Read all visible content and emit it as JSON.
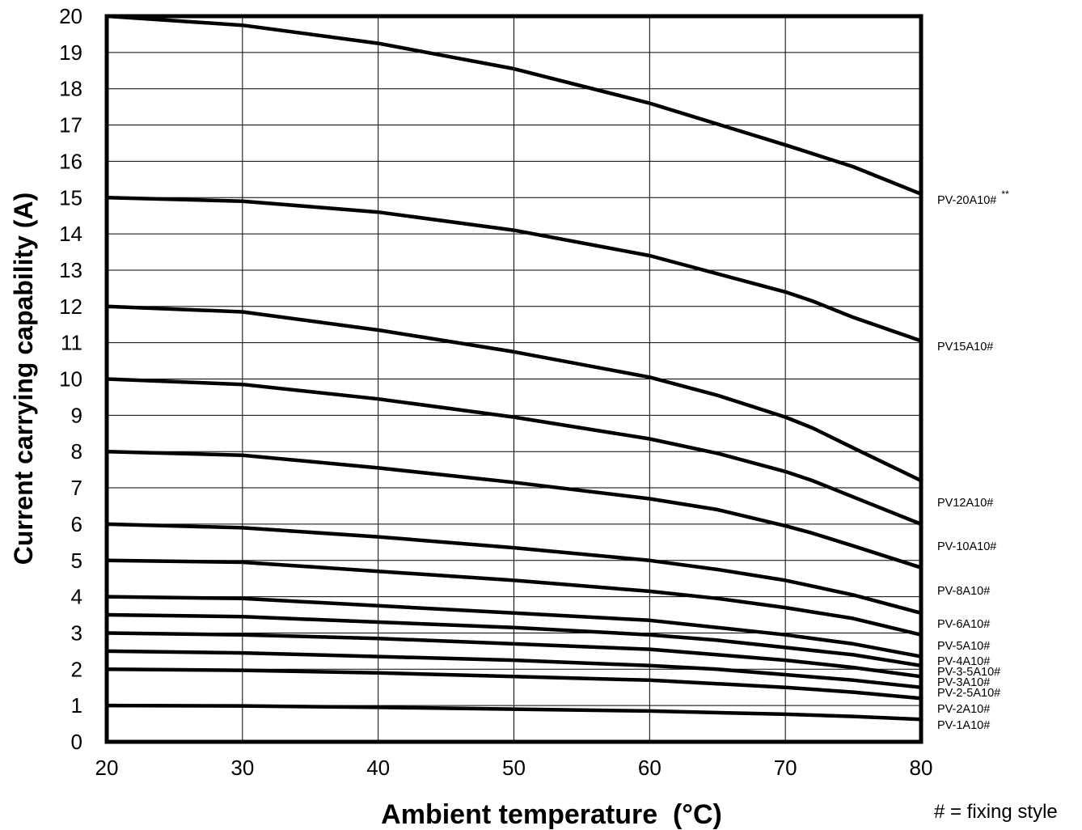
{
  "chart_data": {
    "type": "line",
    "title": "",
    "xlabel": "Ambient temperature  (°C)",
    "ylabel": "Current carrying capability (A)",
    "xlim": [
      20,
      80
    ],
    "ylim": [
      0,
      20
    ],
    "x_ticks": [
      20,
      30,
      40,
      50,
      60,
      70,
      80
    ],
    "y_ticks": [
      0,
      1,
      2,
      3,
      4,
      5,
      6,
      7,
      8,
      9,
      10,
      11,
      12,
      13,
      14,
      15,
      16,
      17,
      18,
      19,
      20
    ],
    "grid": true,
    "line_color": "#000000",
    "legend": "labels at right end of each line",
    "note": "# = fixing style",
    "series": [
      {
        "name": "PV-20A10#",
        "name_suffix": "**",
        "points": [
          [
            20,
            20
          ],
          [
            30,
            19.75
          ],
          [
            40,
            19.25
          ],
          [
            50,
            18.55
          ],
          [
            60,
            17.6
          ],
          [
            70,
            16.45
          ],
          [
            75,
            15.85
          ],
          [
            80,
            15.1
          ]
        ]
      },
      {
        "name": "PV15A10#",
        "points": [
          [
            20,
            15
          ],
          [
            30,
            14.9
          ],
          [
            40,
            14.6
          ],
          [
            50,
            14.1
          ],
          [
            60,
            13.4
          ],
          [
            70,
            12.4
          ],
          [
            72,
            12.15
          ],
          [
            75,
            11.7
          ],
          [
            80,
            11.05
          ]
        ]
      },
      {
        "name": "PV12A10#",
        "points": [
          [
            20,
            12
          ],
          [
            30,
            11.85
          ],
          [
            40,
            11.35
          ],
          [
            50,
            10.75
          ],
          [
            60,
            10.05
          ],
          [
            65,
            9.55
          ],
          [
            70,
            8.95
          ],
          [
            72,
            8.65
          ],
          [
            75,
            8.1
          ],
          [
            80,
            7.2
          ]
        ]
      },
      {
        "name": "PV-10A10#",
        "points": [
          [
            20,
            10
          ],
          [
            30,
            9.85
          ],
          [
            40,
            9.45
          ],
          [
            50,
            8.95
          ],
          [
            60,
            8.35
          ],
          [
            65,
            7.95
          ],
          [
            70,
            7.45
          ],
          [
            72,
            7.2
          ],
          [
            75,
            6.75
          ],
          [
            80,
            6
          ]
        ]
      },
      {
        "name": "PV-8A10#",
        "points": [
          [
            20,
            8
          ],
          [
            30,
            7.9
          ],
          [
            40,
            7.55
          ],
          [
            50,
            7.15
          ],
          [
            60,
            6.7
          ],
          [
            65,
            6.4
          ],
          [
            70,
            5.95
          ],
          [
            72,
            5.75
          ],
          [
            75,
            5.4
          ],
          [
            80,
            4.8
          ]
        ]
      },
      {
        "name": "PV-6A10#",
        "points": [
          [
            20,
            6
          ],
          [
            30,
            5.9
          ],
          [
            40,
            5.65
          ],
          [
            50,
            5.35
          ],
          [
            60,
            5.0
          ],
          [
            65,
            4.75
          ],
          [
            70,
            4.45
          ],
          [
            75,
            4.05
          ],
          [
            80,
            3.55
          ]
        ]
      },
      {
        "name": "PV-5A10#",
        "points": [
          [
            20,
            5
          ],
          [
            30,
            4.95
          ],
          [
            40,
            4.7
          ],
          [
            50,
            4.45
          ],
          [
            60,
            4.15
          ],
          [
            65,
            3.95
          ],
          [
            70,
            3.7
          ],
          [
            75,
            3.4
          ],
          [
            80,
            2.95
          ]
        ]
      },
      {
        "name": "PV-4A10#",
        "points": [
          [
            20,
            4
          ],
          [
            30,
            3.95
          ],
          [
            40,
            3.75
          ],
          [
            50,
            3.55
          ],
          [
            60,
            3.35
          ],
          [
            65,
            3.15
          ],
          [
            70,
            2.95
          ],
          [
            75,
            2.7
          ],
          [
            80,
            2.35
          ]
        ]
      },
      {
        "name": "PV-3-5A10#",
        "points": [
          [
            20,
            3.5
          ],
          [
            30,
            3.45
          ],
          [
            40,
            3.3
          ],
          [
            50,
            3.15
          ],
          [
            60,
            2.95
          ],
          [
            65,
            2.8
          ],
          [
            70,
            2.6
          ],
          [
            75,
            2.4
          ],
          [
            80,
            2.1
          ]
        ]
      },
      {
        "name": "PV-3A10#",
        "points": [
          [
            20,
            3
          ],
          [
            30,
            2.95
          ],
          [
            40,
            2.85
          ],
          [
            50,
            2.7
          ],
          [
            60,
            2.55
          ],
          [
            65,
            2.4
          ],
          [
            70,
            2.25
          ],
          [
            75,
            2.05
          ],
          [
            80,
            1.8
          ]
        ]
      },
      {
        "name": "PV-2-5A10#",
        "points": [
          [
            20,
            2.5
          ],
          [
            30,
            2.45
          ],
          [
            40,
            2.35
          ],
          [
            50,
            2.25
          ],
          [
            60,
            2.1
          ],
          [
            65,
            2.0
          ],
          [
            70,
            1.85
          ],
          [
            75,
            1.7
          ],
          [
            80,
            1.5
          ]
        ]
      },
      {
        "name": "PV-2A10#",
        "points": [
          [
            20,
            2
          ],
          [
            30,
            1.97
          ],
          [
            40,
            1.9
          ],
          [
            50,
            1.8
          ],
          [
            60,
            1.7
          ],
          [
            65,
            1.6
          ],
          [
            70,
            1.5
          ],
          [
            75,
            1.37
          ],
          [
            80,
            1.2
          ]
        ]
      },
      {
        "name": "PV-1A10#",
        "points": [
          [
            20,
            1
          ],
          [
            30,
            0.99
          ],
          [
            40,
            0.95
          ],
          [
            50,
            0.9
          ],
          [
            60,
            0.85
          ],
          [
            70,
            0.76
          ],
          [
            75,
            0.7
          ],
          [
            80,
            0.62
          ]
        ]
      }
    ]
  }
}
